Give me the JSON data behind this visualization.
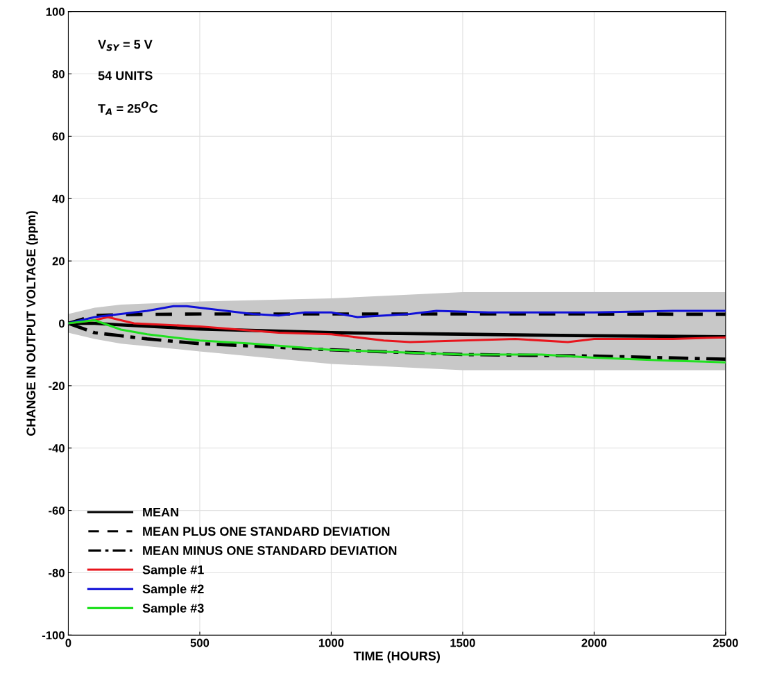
{
  "chart_data": {
    "type": "line",
    "xlabel": "TIME (HOURS)",
    "ylabel": "CHANGE IN OUTPUT VOLTAGE (ppm)",
    "annotations": [
      "V$_{SY}$ = 5 V",
      "54 UNITS",
      "T$_{A}$ = 25$^{O}$C"
    ],
    "xlim": [
      0,
      2500
    ],
    "xticks": [
      0,
      500,
      1000,
      1500,
      2000,
      2500
    ],
    "ylim": [
      -100,
      100
    ],
    "yticks": [
      -100,
      -80,
      -60,
      -40,
      -20,
      0,
      20,
      40,
      60,
      80,
      100
    ],
    "grid": true,
    "legend": "bottom left",
    "marker": "none",
    "series": [
      {
        "name": "MEAN",
        "color": "#000000",
        "line_style": "solid",
        "x": [
          0,
          100,
          200,
          500,
          1000,
          1500,
          2000,
          2500
        ],
        "values": [
          0,
          0,
          -0.5,
          -1.8,
          -3,
          -3.5,
          -4,
          -4.3
        ],
        "lower": [
          -3,
          -5,
          -6.5,
          -9,
          -13,
          -15,
          -15,
          -15
        ],
        "upper": [
          3,
          5,
          6,
          7,
          8,
          10,
          10,
          10
        ]
      },
      {
        "name": "MEAN PLUS ONE STANDARD DEVIATION",
        "color": "#000000",
        "line_style": "dashed",
        "x": [
          0,
          100,
          200,
          500,
          1000,
          1500,
          2000,
          2500
        ],
        "values": [
          0,
          2.5,
          2.8,
          3,
          3,
          3,
          3,
          2.9
        ]
      },
      {
        "name": "MEAN MINUS ONE STANDARD DEVIATION",
        "color": "#000000",
        "line_style": "dashdot",
        "x": [
          0,
          100,
          200,
          300,
          500,
          1000,
          1500,
          2000,
          2500
        ],
        "values": [
          0,
          -3,
          -4,
          -5,
          -6.5,
          -8.5,
          -10,
          -10.5,
          -11.5
        ]
      },
      {
        "name": "Sample #1",
        "color": "#e8141c",
        "line_style": "solid",
        "x": [
          0,
          100,
          150,
          200,
          250,
          500,
          800,
          1000,
          1200,
          1300,
          1500,
          1700,
          1900,
          2000,
          2300,
          2500
        ],
        "values": [
          0,
          1,
          2,
          1,
          0,
          -1,
          -3,
          -3.5,
          -5.5,
          -6,
          -5.5,
          -5,
          -6,
          -5,
          -5,
          -4.5
        ]
      },
      {
        "name": "Sample #2",
        "color": "#1010d8",
        "line_style": "solid",
        "x": [
          0,
          100,
          200,
          300,
          400,
          450,
          500,
          600,
          700,
          800,
          900,
          1000,
          1100,
          1200,
          1300,
          1400,
          1600,
          2000,
          2300,
          2500
        ],
        "values": [
          0,
          2,
          3,
          4,
          5.5,
          5.5,
          5,
          4,
          3,
          2.5,
          3.5,
          3.5,
          2,
          2.5,
          3,
          4,
          3.5,
          3.5,
          4,
          4
        ]
      },
      {
        "name": "Sample #3",
        "color": "#20e020",
        "line_style": "solid",
        "x": [
          0,
          100,
          200,
          300,
          500,
          700,
          1000,
          1500,
          1800,
          2000,
          2300,
          2500
        ],
        "values": [
          0,
          1,
          -2,
          -3.5,
          -5.5,
          -6.5,
          -8.5,
          -10,
          -10,
          -11,
          -12,
          -12.5
        ]
      }
    ]
  }
}
